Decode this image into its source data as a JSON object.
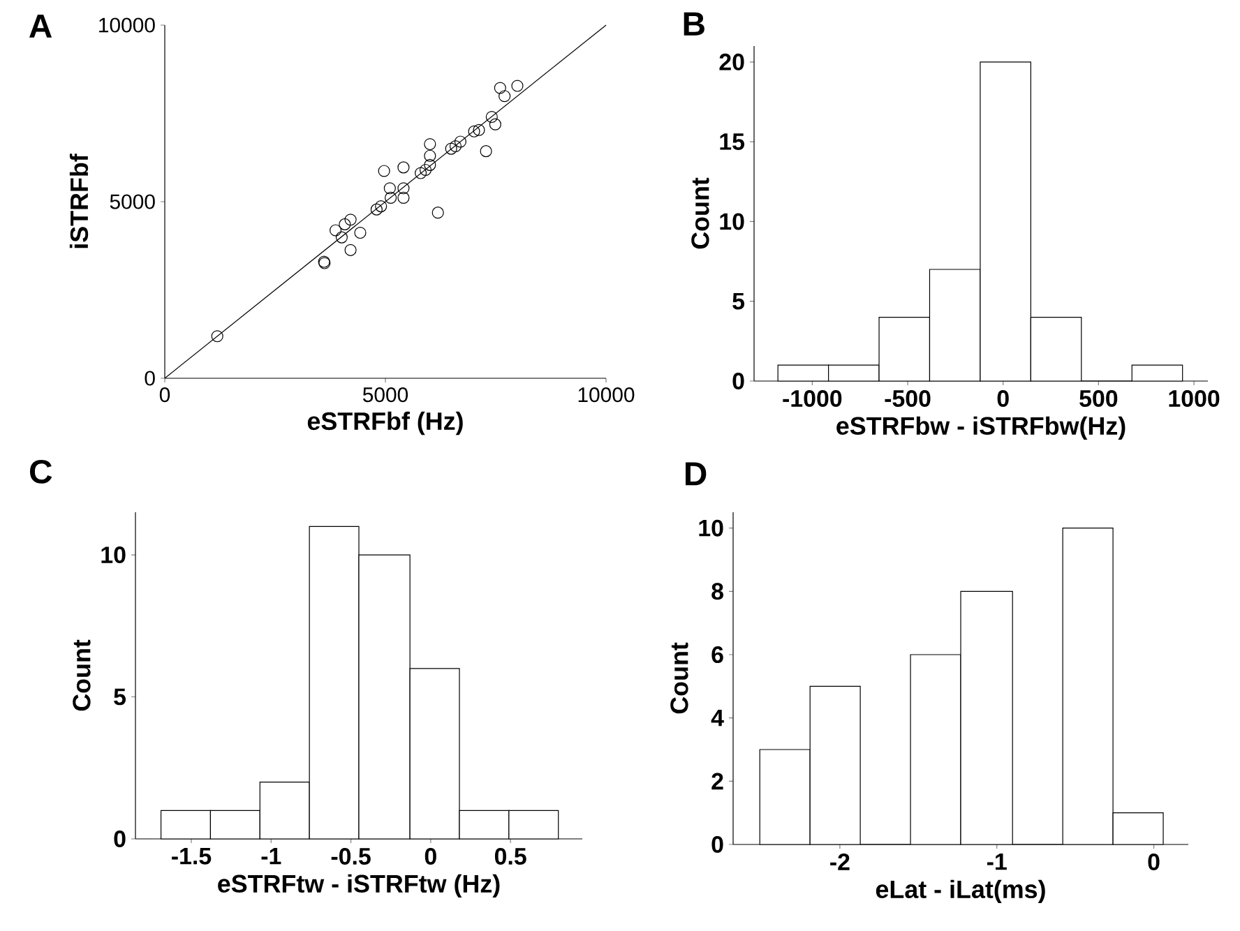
{
  "chart_data": [
    {
      "type": "scatter",
      "title": "A",
      "xlabel": "eSTRFbf (Hz)",
      "ylabel": "iSTRFbf",
      "xlim": [
        0,
        10000
      ],
      "ylim": [
        0,
        10000
      ],
      "xticks": [
        0,
        5000,
        10000
      ],
      "yticks": [
        0,
        5000,
        10000
      ],
      "series": [
        {
          "type": "scatter",
          "marker": "circle",
          "color": "#000000",
          "x": [
            1190,
            3610,
            3620,
            3870,
            4010,
            4080,
            4210,
            4210,
            4430,
            4800,
            4900,
            4970,
            5100,
            5120,
            5410,
            5410,
            5410,
            5800,
            5910,
            6010,
            6010,
            6010,
            6190,
            6490,
            6590,
            6700,
            7010,
            7120,
            7280,
            7410,
            7490,
            7600,
            7700,
            7990
          ],
          "values": [
            1190,
            3300,
            3260,
            4190,
            3990,
            4360,
            4490,
            3630,
            4120,
            4780,
            4870,
            5870,
            5380,
            5110,
            5970,
            5380,
            5110,
            5810,
            5900,
            6040,
            6300,
            6630,
            4690,
            6500,
            6570,
            6700,
            6990,
            7030,
            6430,
            7400,
            7190,
            8220,
            7990,
            8280
          ]
        },
        {
          "type": "line",
          "marker": "none",
          "line_style": "solid",
          "color": "#000000",
          "x": [
            0,
            10000
          ],
          "values": [
            0,
            10000
          ]
        }
      ]
    },
    {
      "type": "histogram",
      "title": "B",
      "xlabel": "eSTRFbw - iSTRFbw(Hz)",
      "ylabel": "Count",
      "color": "#ffffff",
      "bins": [
        -1180,
        -915,
        -650,
        -385,
        -120,
        145,
        410,
        675,
        940
      ],
      "values": [
        1,
        1,
        4,
        7,
        20,
        4,
        0,
        1
      ],
      "xlim": [
        -1305,
        1073
      ],
      "ylim": [
        0,
        21
      ],
      "xticks": [
        -1000,
        -500,
        0,
        500,
        1000
      ],
      "yticks": [
        0,
        5,
        10,
        15,
        20
      ]
    },
    {
      "type": "histogram",
      "title": "C",
      "xlabel": "eSTRFtw - iSTRFtw (Hz)",
      "ylabel": "Count",
      "color": "#ffffff",
      "bins": [
        -1.69,
        -1.38,
        -1.07,
        -0.76,
        -0.45,
        -0.13,
        0.18,
        0.49,
        0.8
      ],
      "values": [
        1,
        1,
        2,
        11,
        10,
        6,
        1,
        1
      ],
      "xlim": [
        -1.85,
        0.95
      ],
      "ylim": [
        0,
        11.5
      ],
      "xticks": [
        -1.5,
        -1,
        -0.5,
        0,
        0.5
      ],
      "yticks": [
        0,
        5,
        10
      ]
    },
    {
      "type": "histogram",
      "title": "D",
      "xlabel": "eLat - iLat(ms)",
      "ylabel": "Count",
      "color": "#ffffff",
      "bins": [
        -2.51,
        -2.19,
        -1.87,
        -1.55,
        -1.23,
        -0.9,
        -0.58,
        -0.26,
        0.06
      ],
      "values": [
        3,
        5,
        0,
        6,
        8,
        0,
        10,
        1
      ],
      "xlim": [
        -2.68,
        0.22
      ],
      "ylim": [
        0,
        10.5
      ],
      "xticks": [
        -2,
        -1,
        0
      ],
      "yticks": [
        0,
        2,
        4,
        6,
        8,
        10
      ]
    }
  ]
}
